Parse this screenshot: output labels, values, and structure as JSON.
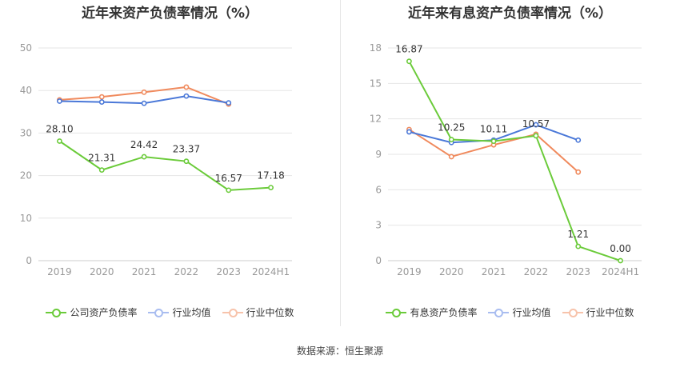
{
  "charts": [
    {
      "title": "近年来资产负债率情况（%）",
      "legend": [
        "公司资产负债率",
        "行业均值",
        "行业中位数"
      ]
    },
    {
      "title": "近年来有息资产负债率情况（%）",
      "legend": [
        "有息资产负债率",
        "行业均值",
        "行业中位数"
      ]
    }
  ],
  "source_text": "数据来源：恒生聚源",
  "colors": {
    "company": "#6bcb3a",
    "industry_mean": "#4a78d8",
    "industry_median": "#f08a5d",
    "grid": "#e6e6e6",
    "axis_text": "#999999"
  },
  "chart_data": [
    {
      "type": "line",
      "title": "近年来资产负债率情况（%）",
      "categories": [
        "2019",
        "2020",
        "2021",
        "2022",
        "2023",
        "2024H1"
      ],
      "ylim": [
        0,
        50
      ],
      "yticks": [
        0,
        10,
        20,
        30,
        40,
        50
      ],
      "grid": true,
      "legend_position": "bottom",
      "series": [
        {
          "name": "公司资产负债率",
          "values": [
            28.1,
            21.31,
            24.42,
            23.37,
            16.57,
            17.18
          ],
          "labels": [
            "28.10",
            "21.31",
            "24.42",
            "23.37",
            "16.57",
            "17.18"
          ]
        },
        {
          "name": "行业均值",
          "values": [
            37.5,
            37.3,
            37.0,
            38.7,
            37.1,
            null
          ]
        },
        {
          "name": "行业中位数",
          "values": [
            37.8,
            38.5,
            39.6,
            40.8,
            36.8,
            null
          ]
        }
      ]
    },
    {
      "type": "line",
      "title": "近年来有息资产负债率情况（%）",
      "categories": [
        "2019",
        "2020",
        "2021",
        "2022",
        "2023",
        "2024H1"
      ],
      "ylim": [
        0,
        18
      ],
      "yticks": [
        0,
        3,
        6,
        9,
        12,
        15,
        18
      ],
      "grid": true,
      "legend_position": "bottom",
      "series": [
        {
          "name": "有息资产负债率",
          "values": [
            16.87,
            10.25,
            10.11,
            10.57,
            1.21,
            0.0
          ],
          "labels": [
            "16.87",
            "10.25",
            "10.11",
            "10.57",
            "1.21",
            "0.00"
          ]
        },
        {
          "name": "行业均值",
          "values": [
            10.9,
            10.0,
            10.2,
            11.5,
            10.2,
            null
          ]
        },
        {
          "name": "行业中位数",
          "values": [
            11.1,
            8.8,
            9.8,
            10.7,
            7.5,
            null
          ]
        }
      ]
    }
  ]
}
